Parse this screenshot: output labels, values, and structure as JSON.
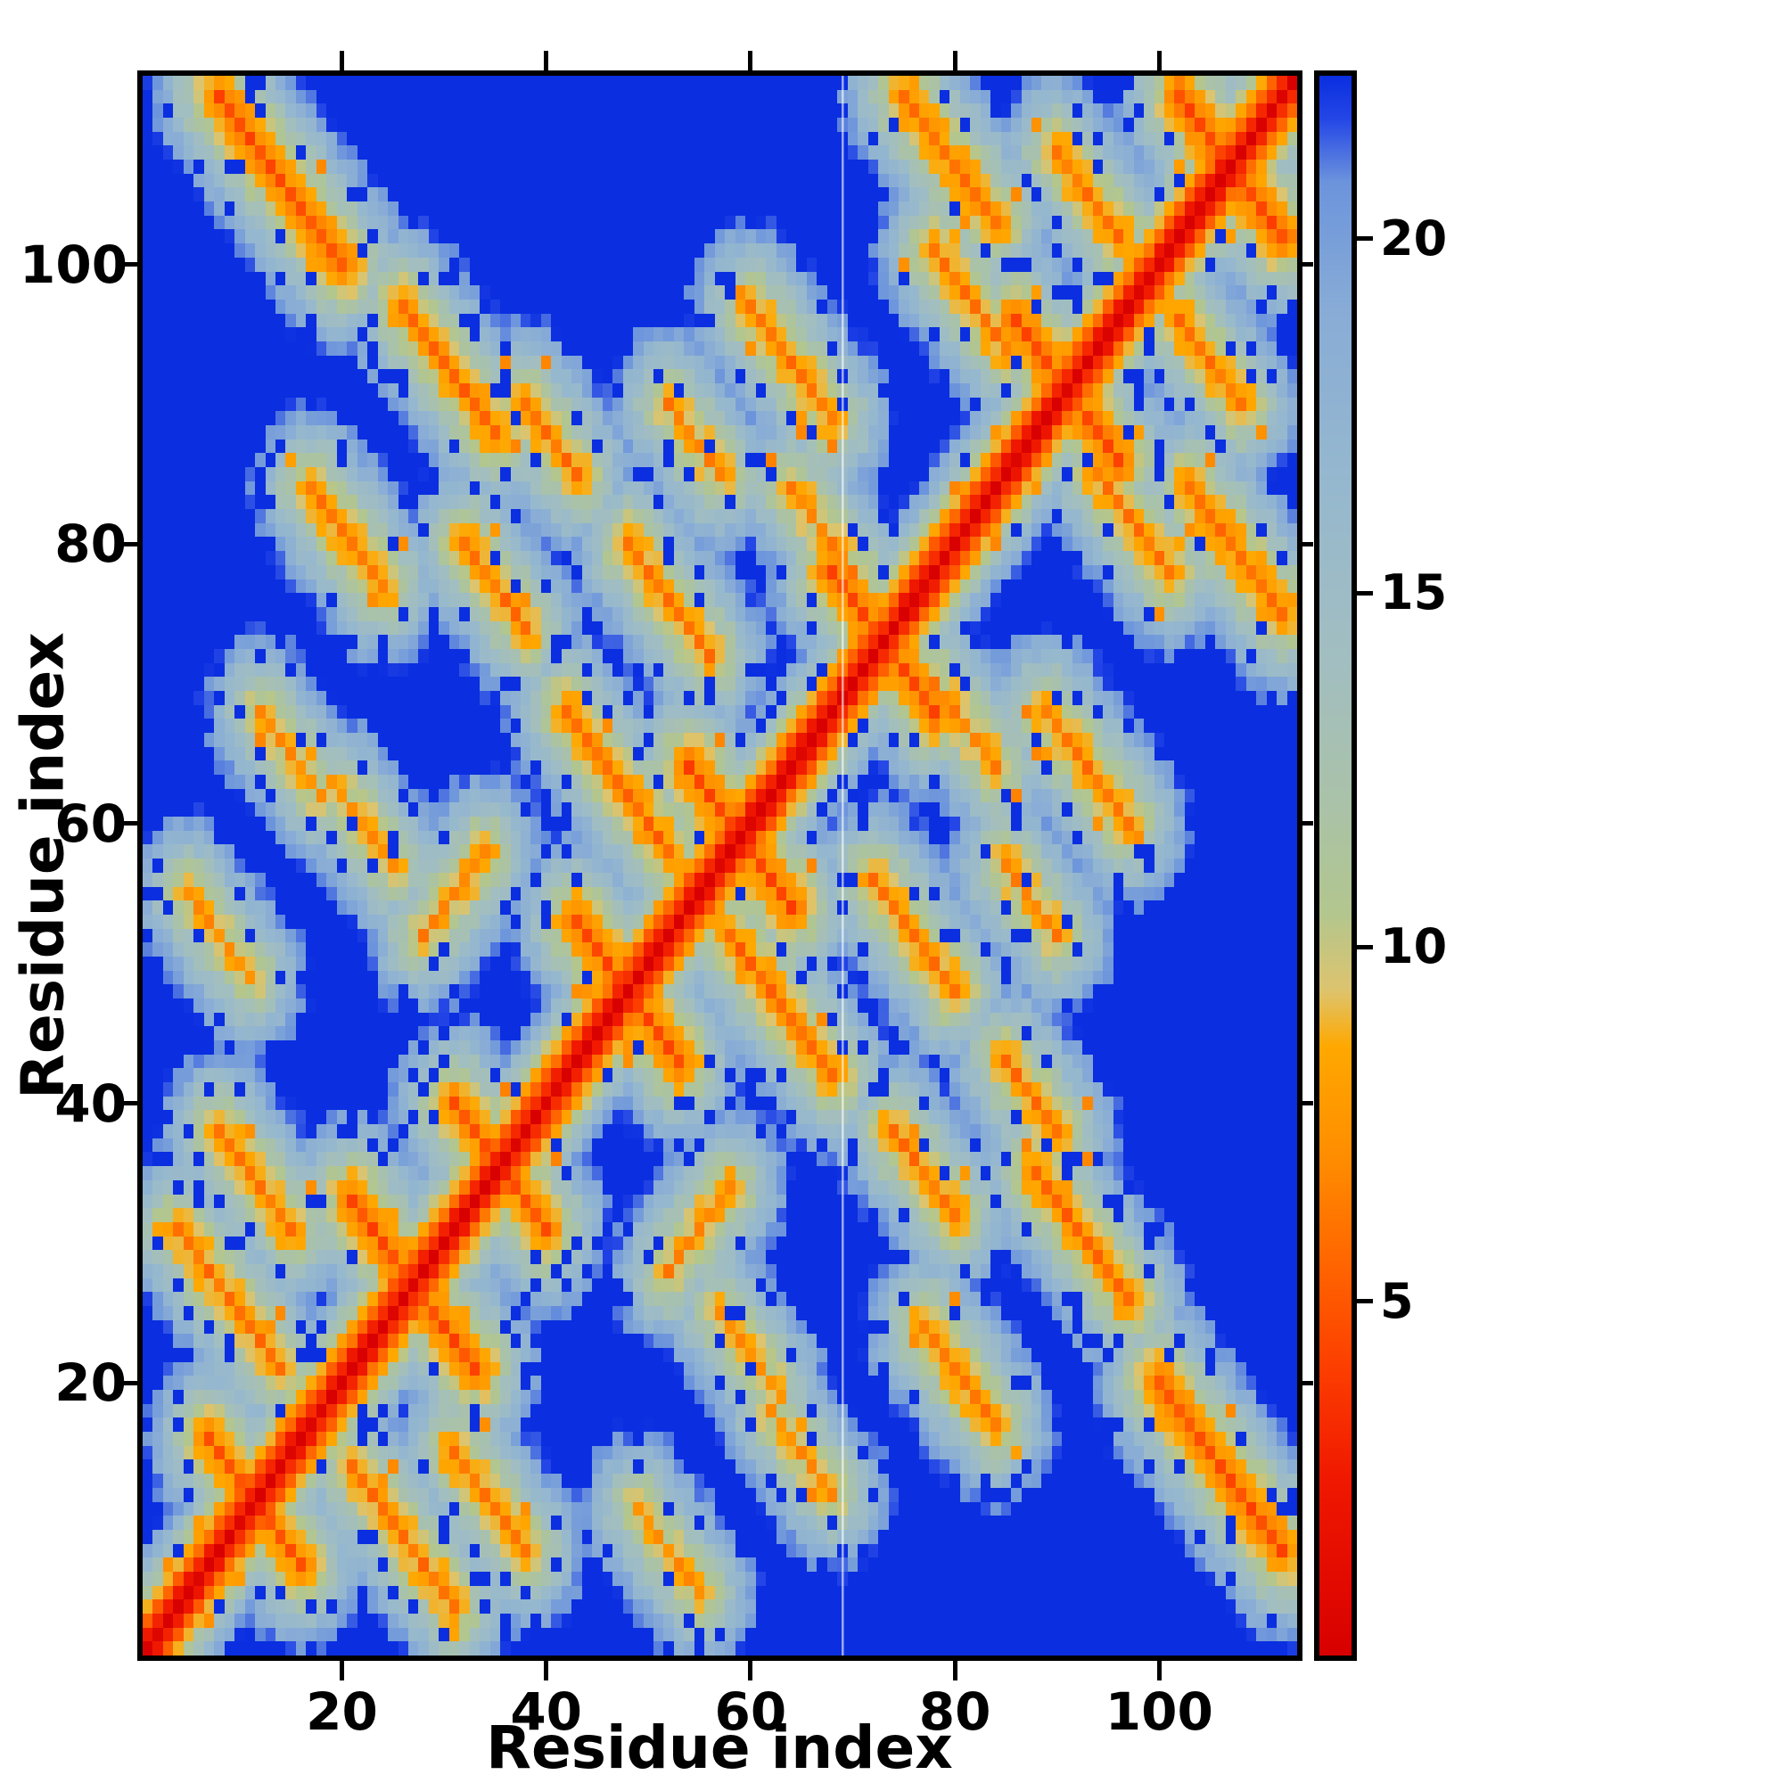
{
  "figure": {
    "background": "#ffffff",
    "frame_color": "#000000"
  },
  "chart_data": {
    "type": "heatmap",
    "title": "",
    "xlabel": "Residue index",
    "ylabel": "Residue index",
    "n_residues": 113,
    "x_range": [
      1,
      113
    ],
    "y_range": [
      1,
      113
    ],
    "x_ticks": [
      20,
      40,
      60,
      80,
      100
    ],
    "y_ticks": [
      20,
      40,
      60,
      80,
      100
    ],
    "colorbar_ticks": [
      5,
      10,
      15,
      20
    ],
    "value_min": 0,
    "value_max": 22.3,
    "grid": false,
    "legend_position": "right-colorbar",
    "diagonal_slope": 2.8,
    "basin_slope": 2.6,
    "noise_seed": 4242,
    "noise_amp": 1.3,
    "blue_speckle_prob": 0.1,
    "orange_speckle_prob": 0.028,
    "artifact_column": 69,
    "colormap_stops": [
      [
        0,
        "#d80000"
      ],
      [
        2.5,
        "#f01800"
      ],
      [
        4,
        "#fc3c00"
      ],
      [
        5.5,
        "#ff6400"
      ],
      [
        7,
        "#ff8c00"
      ],
      [
        8.6,
        "#ffa800"
      ],
      [
        9.4,
        "#ddc46e"
      ],
      [
        10.5,
        "#b2c68e"
      ],
      [
        12,
        "#aac2a8"
      ],
      [
        14,
        "#a2bec0"
      ],
      [
        16.5,
        "#96b8ce"
      ],
      [
        19,
        "#88acd6"
      ],
      [
        20.8,
        "#6c94dc"
      ],
      [
        21.7,
        "#2446e6"
      ],
      [
        22.3,
        "#0a2ee0"
      ]
    ],
    "contacts": [
      {
        "i": 21,
        "j": 33,
        "len": 8,
        "dir": -1,
        "d": 4.5
      },
      {
        "i": 31,
        "j": 40,
        "len": 6,
        "dir": -1,
        "d": 5.0
      },
      {
        "i": 7,
        "j": 16,
        "len": 6,
        "dir": -1,
        "d": 5.2
      },
      {
        "i": 43,
        "j": 53,
        "len": 8,
        "dir": -1,
        "d": 4.5
      },
      {
        "i": 54,
        "j": 64,
        "len": 8,
        "dir": -1,
        "d": 4.5
      },
      {
        "i": 68,
        "j": 78,
        "len": 8,
        "dir": -1,
        "d": 4.5
      },
      {
        "i": 86,
        "j": 96,
        "len": 8,
        "dir": -1,
        "d": 4.5
      },
      {
        "i": 102,
        "j": 112,
        "len": 9,
        "dir": -1,
        "d": 4.2
      },
      {
        "i": 8,
        "j": 112,
        "len": 12,
        "dir": -1,
        "d": 4.6
      },
      {
        "i": 4,
        "j": 31,
        "len": 10,
        "dir": -1,
        "d": 6.0
      },
      {
        "i": 8,
        "j": 38,
        "len": 7,
        "dir": -1,
        "d": 6.0
      },
      {
        "i": 26,
        "j": 97,
        "len": 9,
        "dir": -1,
        "d": 5.5
      },
      {
        "i": 17,
        "j": 84,
        "len": 7,
        "dir": -1,
        "d": 6.0
      },
      {
        "i": 32,
        "j": 80,
        "len": 6,
        "dir": -1,
        "d": 6.0
      },
      {
        "i": 42,
        "j": 68,
        "len": 10,
        "dir": -1,
        "d": 5.5
      },
      {
        "i": 48,
        "j": 80,
        "len": 8,
        "dir": -1,
        "d": 6.0
      },
      {
        "i": 60,
        "j": 97,
        "len": 8,
        "dir": -1,
        "d": 6.0
      },
      {
        "i": 75,
        "j": 112,
        "len": 9,
        "dir": -1,
        "d": 5.5
      },
      {
        "i": 78,
        "j": 101,
        "len": 7,
        "dir": -1,
        "d": 6.0
      },
      {
        "i": 38,
        "j": 90,
        "len": 5,
        "dir": -1,
        "d": 6.0
      },
      {
        "i": 5,
        "j": 55,
        "len": 6,
        "dir": -1,
        "d": 7.0
      },
      {
        "i": 28,
        "j": 52,
        "len": 6,
        "dir": 1,
        "d": 6.5
      },
      {
        "i": 64,
        "j": 84,
        "len": 6,
        "dir": -1,
        "d": 6.5
      },
      {
        "i": 90,
        "j": 108,
        "len": 6,
        "dir": -1,
        "d": 6.0
      },
      {
        "i": 12,
        "j": 68,
        "len": 6,
        "dir": -1,
        "d": 7.0
      },
      {
        "i": 52,
        "j": 90,
        "len": 5,
        "dir": -1,
        "d": 6.5
      },
      {
        "i": 20,
        "j": 62,
        "len": 5,
        "dir": -1,
        "d": 7.0
      }
    ]
  }
}
